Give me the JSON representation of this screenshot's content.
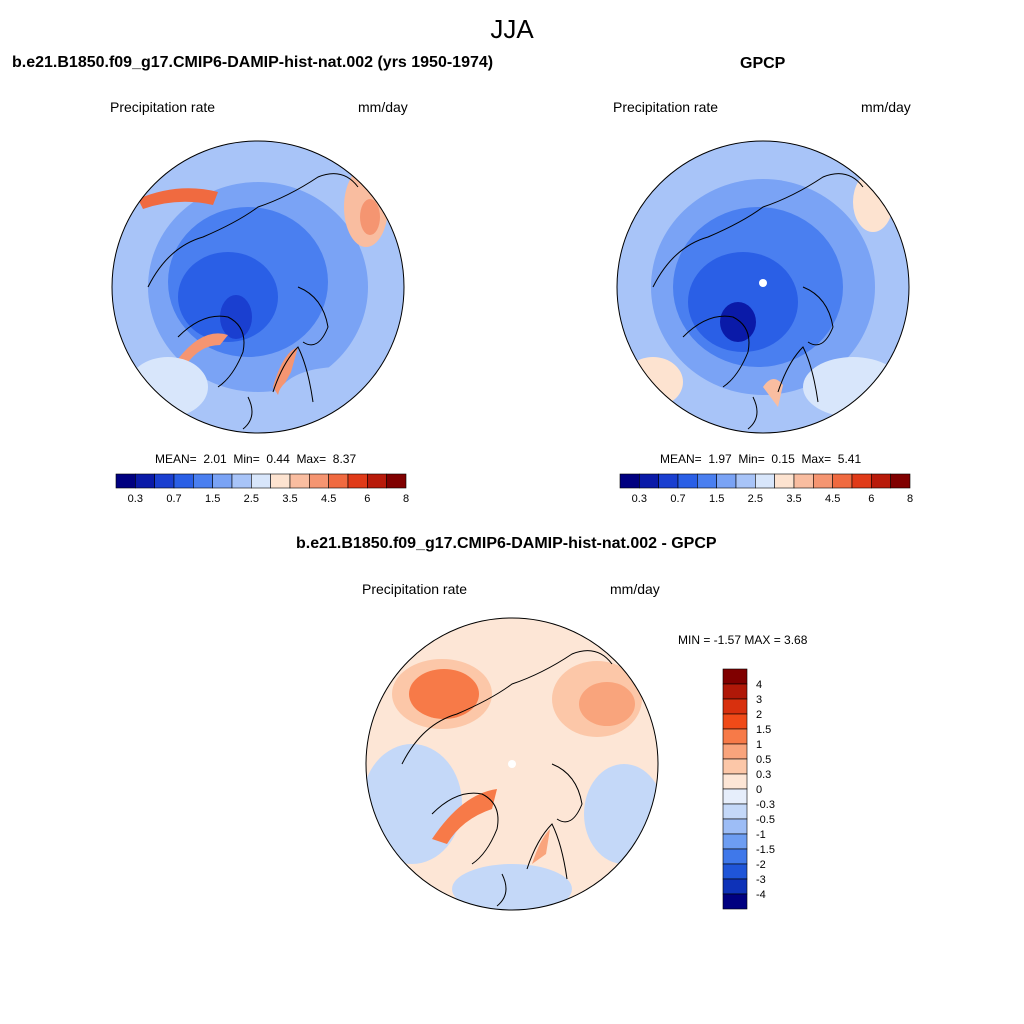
{
  "main_title": "JJA",
  "panels": {
    "model": {
      "title": "b.e21.B1850.f09_g17.CMIP6-DAMIP-hist-nat.002 (yrs 1950-1974)",
      "left_label": "Precipitation rate",
      "right_label": "mm/day",
      "stats": {
        "mean_label": "MEAN=",
        "mean": "2.01",
        "min_label": "Min=",
        "min": "0.44",
        "max_label": "Max=",
        "max": "8.37"
      }
    },
    "obs": {
      "title": "GPCP",
      "left_label": "Precipitation rate",
      "right_label": "mm/day",
      "stats": {
        "mean_label": "MEAN=",
        "mean": "1.97",
        "min_label": "Min=",
        "min": "0.15",
        "max_label": "Max=",
        "max": "5.41"
      }
    },
    "diff": {
      "title": "b.e21.B1850.f09_g17.CMIP6-DAMIP-hist-nat.002 - GPCP",
      "left_label": "Precipitation rate",
      "right_label": "mm/day",
      "stats_text": "MIN =  -1.57 MAX =   3.68"
    }
  },
  "colorbar_abs": {
    "colors": [
      "#000080",
      "#0a1aa8",
      "#1a3fd0",
      "#2a5fe6",
      "#4a7ff0",
      "#7aa3f5",
      "#a8c4f8",
      "#d8e6fb",
      "#fde3d0",
      "#f9bda0",
      "#f59571",
      "#f06a40",
      "#e03a18",
      "#b81a0a",
      "#800000"
    ],
    "labels": [
      "0.3",
      "0.7",
      "1.5",
      "2.5",
      "3.5",
      "4.5",
      "6",
      "8"
    ]
  },
  "colorbar_diff": {
    "colors": [
      "#800000",
      "#b01808",
      "#d8300e",
      "#f04a18",
      "#f77a48",
      "#f9a47c",
      "#fcc7a8",
      "#fde6d6",
      "#e6eefb",
      "#c4d8f8",
      "#9dbdf6",
      "#6d9df2",
      "#3f78ea",
      "#1f55d8",
      "#0e32b8",
      "#000080"
    ],
    "labels": [
      "4",
      "3",
      "2",
      "1.5",
      "1",
      "0.5",
      "0.3",
      "0",
      "-0.3",
      "-0.5",
      "-1",
      "-1.5",
      "-2",
      "-3",
      "-4"
    ]
  },
  "chart_data": [
    {
      "type": "heatmap",
      "title": "b.e21.B1850.f09_g17.CMIP6-DAMIP-hist-nat.002 (yrs 1950-1974)",
      "variable": "Precipitation rate",
      "units": "mm/day",
      "season": "JJA",
      "projection": "north polar stereographic",
      "mean": 2.01,
      "min": 0.44,
      "max": 8.37,
      "levels": [
        0.3,
        0.7,
        1.5,
        2.5,
        3.5,
        4.5,
        6,
        8
      ]
    },
    {
      "type": "heatmap",
      "title": "GPCP",
      "variable": "Precipitation rate",
      "units": "mm/day",
      "season": "JJA",
      "projection": "north polar stereographic",
      "mean": 1.97,
      "min": 0.15,
      "max": 5.41,
      "levels": [
        0.3,
        0.7,
        1.5,
        2.5,
        3.5,
        4.5,
        6,
        8
      ]
    },
    {
      "type": "heatmap",
      "title": "b.e21.B1850.f09_g17.CMIP6-DAMIP-hist-nat.002 - GPCP",
      "variable": "Precipitation rate",
      "units": "mm/day",
      "season": "JJA",
      "projection": "north polar stereographic",
      "min": -1.57,
      "max": 3.68,
      "levels": [
        -4,
        -3,
        -2,
        -1.5,
        -1,
        -0.5,
        -0.3,
        0,
        0.3,
        0.5,
        1,
        1.5,
        2,
        3,
        4
      ]
    }
  ]
}
